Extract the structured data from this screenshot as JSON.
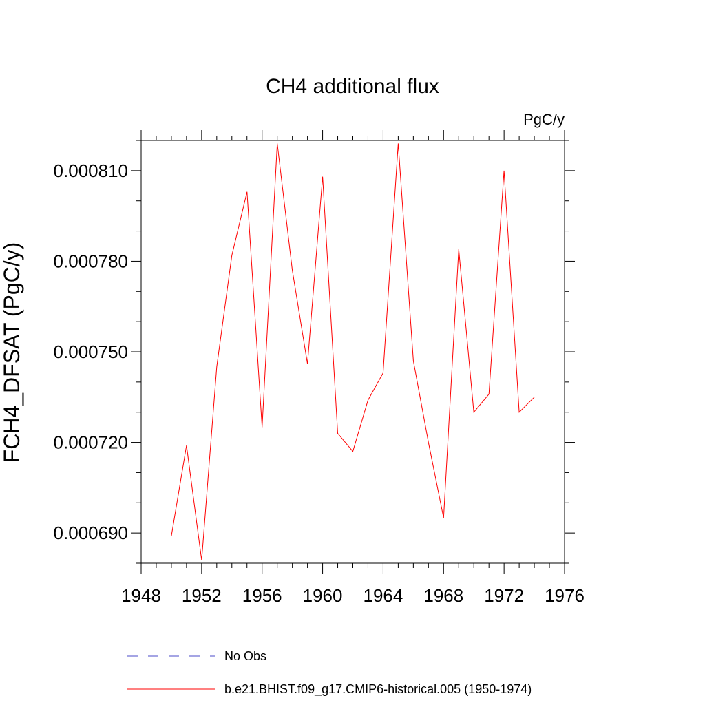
{
  "chart_data": {
    "type": "line",
    "title": "CH4 additional flux",
    "units_label": "PgC/y",
    "ylabel": "FCH4_DFSAT  (PgC/y)",
    "xlabel": "",
    "xlim": [
      1948,
      1976
    ],
    "ylim": [
      0.00068,
      0.00082
    ],
    "x_ticks": [
      1948,
      1952,
      1956,
      1960,
      1964,
      1968,
      1972,
      1976
    ],
    "x_tick_labels": [
      "1948",
      "1952",
      "1956",
      "1960",
      "1964",
      "1968",
      "1972",
      "1976"
    ],
    "y_ticks": [
      0.00069,
      0.00072,
      0.00075,
      0.00078,
      0.00081
    ],
    "y_tick_labels": [
      "0.000690",
      "0.000720",
      "0.000750",
      "0.000780",
      "0.000810"
    ],
    "series": [
      {
        "name": "b.e21.BHIST.f09_g17.CMIP6-historical.005 (1950-1974)",
        "color": "#ff0000",
        "style": "solid",
        "x": [
          1950,
          1951,
          1952,
          1953,
          1954,
          1955,
          1956,
          1957,
          1958,
          1959,
          1960,
          1961,
          1962,
          1963,
          1964,
          1965,
          1966,
          1967,
          1968,
          1969,
          1970,
          1971,
          1972,
          1973,
          1974
        ],
        "values": [
          0.000689,
          0.000719,
          0.000681,
          0.000745,
          0.000782,
          0.000803,
          0.000725,
          0.000819,
          0.000777,
          0.000746,
          0.000808,
          0.000723,
          0.000717,
          0.000734,
          0.000743,
          0.000819,
          0.000747,
          0.00072,
          0.000695,
          0.000784,
          0.00073,
          0.000736,
          0.00081,
          0.00073,
          0.000735
        ]
      },
      {
        "name": "No Obs",
        "color": "#4b4bc8",
        "style": "dashed",
        "x": [],
        "values": []
      }
    ],
    "legend": [
      {
        "label": "No Obs",
        "color": "#4b4bc8",
        "style": "dashed"
      },
      {
        "label": "b.e21.BHIST.f09_g17.CMIP6-historical.005 (1950-1974)",
        "color": "#ff0000",
        "style": "solid"
      }
    ],
    "legend_position": "bottom",
    "grid": false
  }
}
